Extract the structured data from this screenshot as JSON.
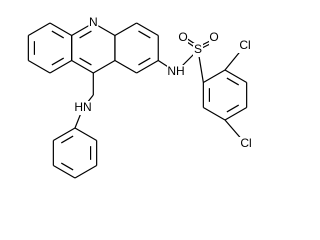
{
  "atoms": {
    "ring_n": "N",
    "sulfonamide_nh": "NH",
    "sulfur": "S",
    "oxygen_1": "O",
    "oxygen_2": "O",
    "chlorine_1": "Cl",
    "chlorine_2": "Cl",
    "amine_nh": "HN"
  }
}
